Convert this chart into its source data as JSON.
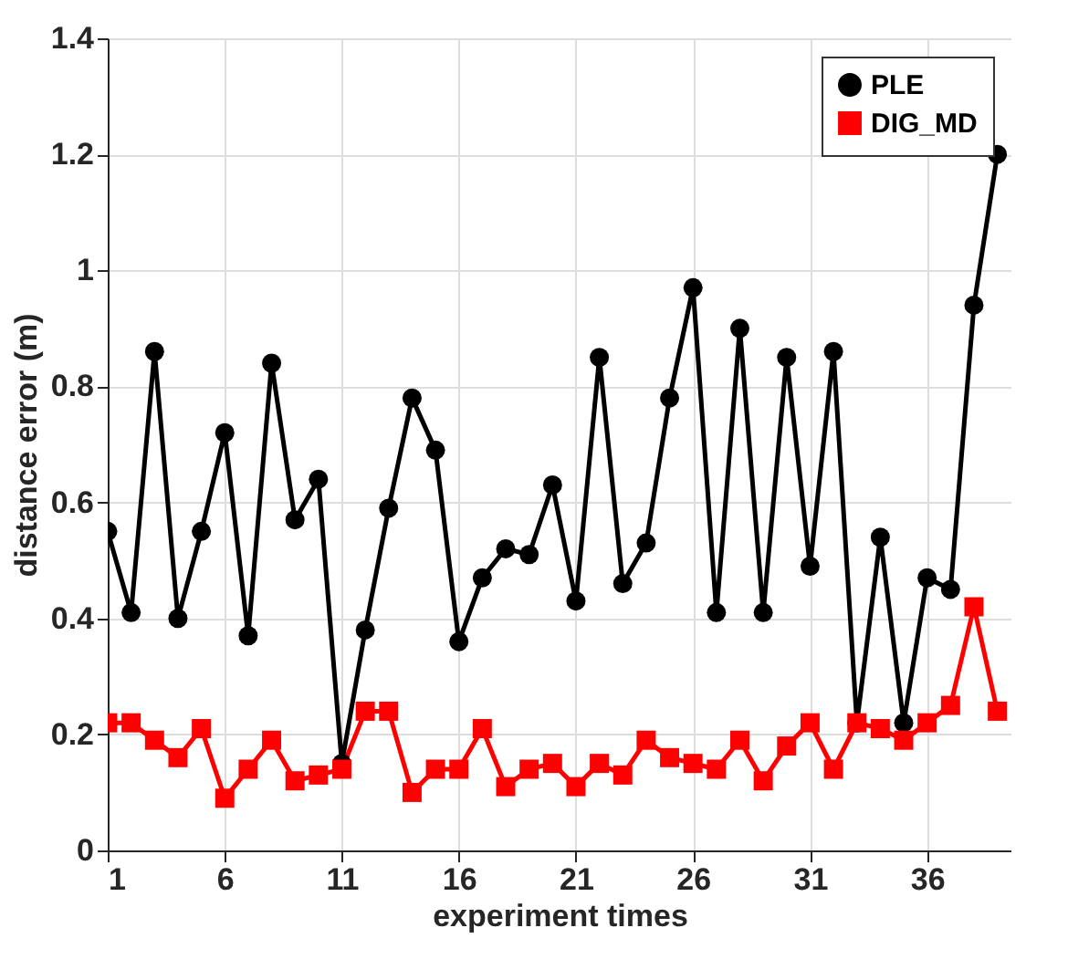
{
  "chart_data": {
    "type": "line",
    "xlabel": "experiment times",
    "ylabel": "distance error (m)",
    "x": [
      1,
      2,
      3,
      4,
      5,
      6,
      7,
      8,
      9,
      10,
      11,
      12,
      13,
      14,
      15,
      16,
      17,
      18,
      19,
      20,
      21,
      22,
      23,
      24,
      25,
      26,
      27,
      28,
      29,
      30,
      31,
      32,
      33,
      34,
      35,
      36,
      37,
      38,
      39
    ],
    "series": [
      {
        "name": "PLE",
        "color": "#000000",
        "marker": "circle",
        "values": [
          0.55,
          0.41,
          0.86,
          0.4,
          0.55,
          0.72,
          0.37,
          0.84,
          0.57,
          0.64,
          0.15,
          0.38,
          0.59,
          0.78,
          0.69,
          0.36,
          0.47,
          0.52,
          0.51,
          0.63,
          0.43,
          0.85,
          0.46,
          0.53,
          0.78,
          0.97,
          0.41,
          0.9,
          0.41,
          0.85,
          0.49,
          0.86,
          0.22,
          0.54,
          0.22,
          0.47,
          0.45,
          0.94,
          1.2
        ]
      },
      {
        "name": "DIG_MD",
        "color": "#ff0000",
        "marker": "square",
        "values": [
          0.22,
          0.22,
          0.19,
          0.16,
          0.21,
          0.09,
          0.14,
          0.19,
          0.12,
          0.13,
          0.14,
          0.24,
          0.24,
          0.1,
          0.14,
          0.14,
          0.21,
          0.11,
          0.14,
          0.15,
          0.11,
          0.15,
          0.13,
          0.19,
          0.16,
          0.15,
          0.14,
          0.19,
          0.12,
          0.18,
          0.22,
          0.14,
          0.22,
          0.21,
          0.19,
          0.22,
          0.25,
          0.42,
          0.24
        ]
      }
    ],
    "xlim": [
      1,
      39.6
    ],
    "xticks": [
      1,
      6,
      11,
      16,
      21,
      26,
      31,
      36
    ],
    "ylim": [
      0,
      1.4
    ],
    "yticks": [
      0,
      0.2,
      0.4,
      0.6,
      0.8,
      1,
      1.2,
      1.4
    ],
    "grid": true,
    "legend": "top right",
    "line_style": "solid"
  }
}
